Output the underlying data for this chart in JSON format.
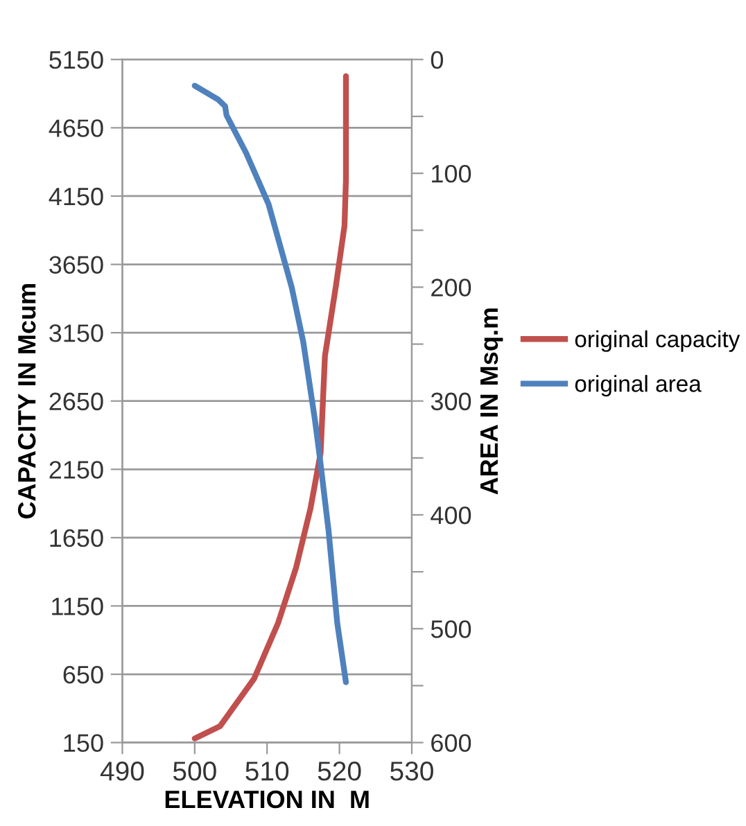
{
  "chart_data": {
    "type": "line",
    "xlabel": "ELEVATION IN  M",
    "ylabel": "CAPACITY IN Mcum",
    "y2label": "AREA IN Msq.m",
    "xlim": [
      490,
      530
    ],
    "xticks": [
      490,
      500,
      510,
      520,
      530
    ],
    "ylim": [
      150,
      5150
    ],
    "yticks": [
      150,
      650,
      1150,
      1650,
      2150,
      2650,
      3150,
      3650,
      4150,
      4650,
      5150
    ],
    "y2lim": [
      600,
      0
    ],
    "y2ticks": [
      0,
      {
        "value": 50,
        "label": null
      },
      100,
      {
        "value": 150,
        "label": null
      },
      200,
      {
        "value": 250,
        "label": null
      },
      300,
      {
        "value": 350,
        "label": null
      },
      400,
      {
        "value": 450,
        "label": null
      },
      500,
      {
        "value": 550,
        "label": null
      },
      600
    ],
    "grid": "y",
    "legend": "right",
    "marker": "none",
    "line_style": "solid",
    "series": [
      {
        "name": "original capacity",
        "color": "#c0504d",
        "x": [
          500,
          503.5,
          508.2,
          511.5,
          514,
          516,
          517.4,
          518,
          519.5,
          520.7,
          520.9,
          520.9
        ],
        "values": [
          180,
          270,
          617,
          1022,
          1428,
          1864,
          2270,
          2980,
          3487,
          3933,
          4268,
          5028
        ]
      },
      {
        "name": "original area",
        "color": "#4f81bd",
        "axis": "y2",
        "x": [
          500,
          503.2,
          504.2,
          504.4,
          507.1,
          510.2,
          513.4,
          515,
          516.6,
          517.2,
          518.5,
          519.7,
          520.9
        ],
        "values": [
          23,
          35,
          41,
          49,
          82,
          127,
          200,
          248,
          316,
          345,
          414,
          495,
          547
        ]
      }
    ]
  }
}
